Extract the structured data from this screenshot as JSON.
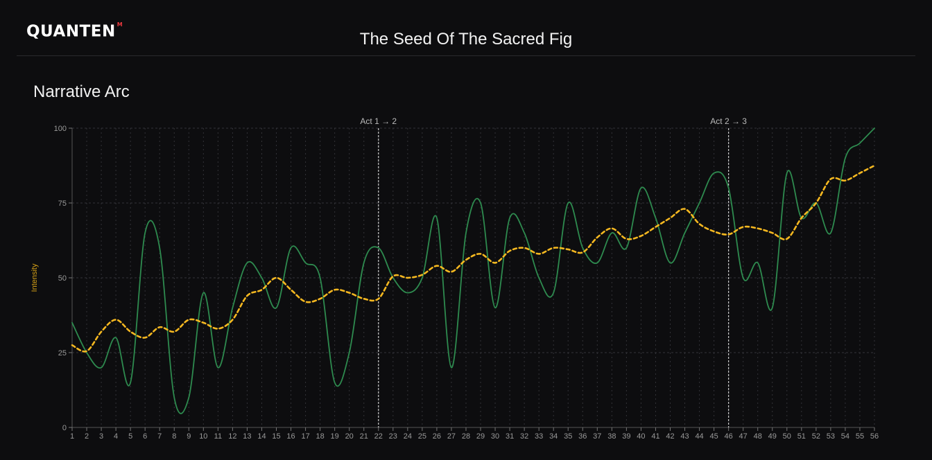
{
  "header": {
    "logo_text": "QUANTEN",
    "logo_mark": "M",
    "title": "The Seed Of The Sacred Fig"
  },
  "section": {
    "title": "Narrative Arc"
  },
  "colors": {
    "background": "#0d0d0f",
    "intensity_line": "#2e8b4f",
    "trend_line": "#f5b820",
    "axis_label": "#d4a017",
    "grid": "#333338",
    "marker": "#cccccc"
  },
  "chart_data": {
    "type": "line",
    "ylabel": "Intensity",
    "xlabel": "",
    "ylim": [
      0,
      100
    ],
    "yticks": [
      0,
      25,
      50,
      75,
      100
    ],
    "x": [
      1,
      2,
      3,
      4,
      5,
      6,
      7,
      8,
      9,
      10,
      11,
      12,
      13,
      14,
      15,
      16,
      17,
      18,
      19,
      20,
      21,
      22,
      23,
      24,
      25,
      26,
      27,
      28,
      29,
      30,
      31,
      32,
      33,
      34,
      35,
      36,
      37,
      38,
      39,
      40,
      41,
      42,
      43,
      44,
      45,
      46,
      47,
      48,
      49,
      50,
      51,
      52,
      53,
      54,
      55,
      56
    ],
    "grid": true,
    "series": [
      {
        "values": [
          35,
          25,
          20,
          30,
          15,
          65,
          60,
          10,
          10,
          45,
          20,
          40,
          55,
          50,
          40,
          60,
          55,
          50,
          15,
          25,
          55,
          60,
          50,
          45,
          50,
          70,
          20,
          65,
          75,
          40,
          70,
          65,
          50,
          45,
          75,
          60,
          55,
          65,
          60,
          80,
          70,
          55,
          65,
          75,
          85,
          80,
          50,
          55,
          40,
          85,
          70,
          75,
          65,
          90,
          95,
          100
        ],
        "style": "solid"
      },
      {
        "values": [
          27.5,
          25.5,
          32,
          36,
          32,
          30,
          33.5,
          32,
          36,
          35,
          33,
          36,
          44,
          46,
          50,
          46,
          42,
          43,
          46,
          45,
          43,
          43,
          50.5,
          50,
          51,
          54,
          52,
          56,
          58,
          55,
          59,
          60,
          58,
          60,
          59.5,
          58.5,
          63.5,
          66.5,
          63,
          64,
          67,
          70,
          73,
          68,
          65.5,
          64.5,
          67,
          66.5,
          65,
          63,
          70,
          75,
          83,
          82.5,
          85,
          87.5
        ],
        "style": "dashed"
      }
    ],
    "annotations": [
      {
        "x": 22,
        "label": "Act 1 → 2"
      },
      {
        "x": 46,
        "label": "Act 2 → 3"
      }
    ]
  }
}
